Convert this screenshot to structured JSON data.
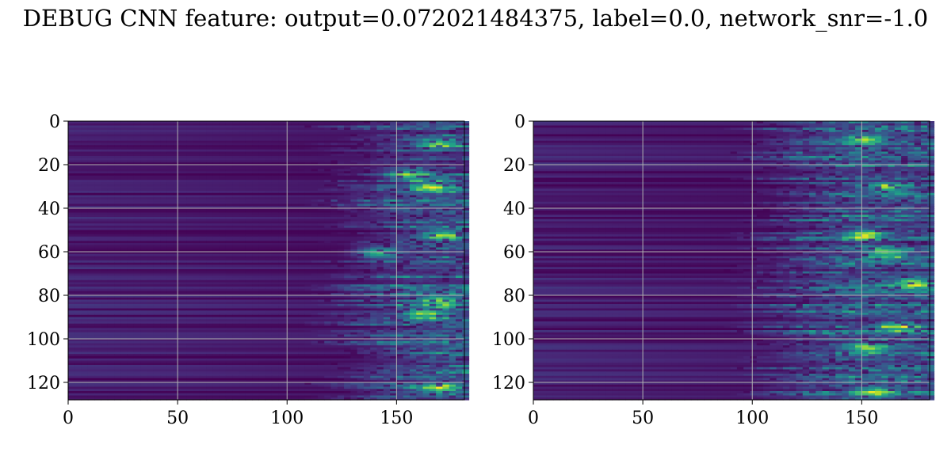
{
  "title": "DEBUG CNN feature: output=0.072021484375, label=0.0, network_snr=-1.0",
  "chart_data": [
    {
      "type": "heatmap",
      "colormap": "viridis",
      "grid": true,
      "x_ticks": [
        0,
        50,
        100,
        150
      ],
      "y_ticks": [
        0,
        20,
        40,
        60,
        80,
        100,
        120
      ],
      "xlim": [
        0,
        181
      ],
      "ylim": [
        128,
        0
      ],
      "rows": 128,
      "cols": 181,
      "pattern": "near-zero dark background at low x; bright streaky activations from x≈120 to 181, strongest near x≈150–181 with yellow peaks around rows 10, 52, 82, 88, 122"
    },
    {
      "type": "heatmap",
      "colormap": "viridis",
      "grid": true,
      "x_ticks": [
        0,
        50,
        100,
        150
      ],
      "y_ticks": [
        0,
        20,
        40,
        60,
        80,
        100,
        120
      ],
      "xlim": [
        0,
        181
      ],
      "ylim": [
        128,
        0
      ],
      "rows": 128,
      "cols": 181,
      "pattern": "near-zero dark background at low x; blotchy activations from x≈100 to 181, brightest around x≈140–181 with green peaks near rows 8, 52, 60, 104"
    }
  ]
}
